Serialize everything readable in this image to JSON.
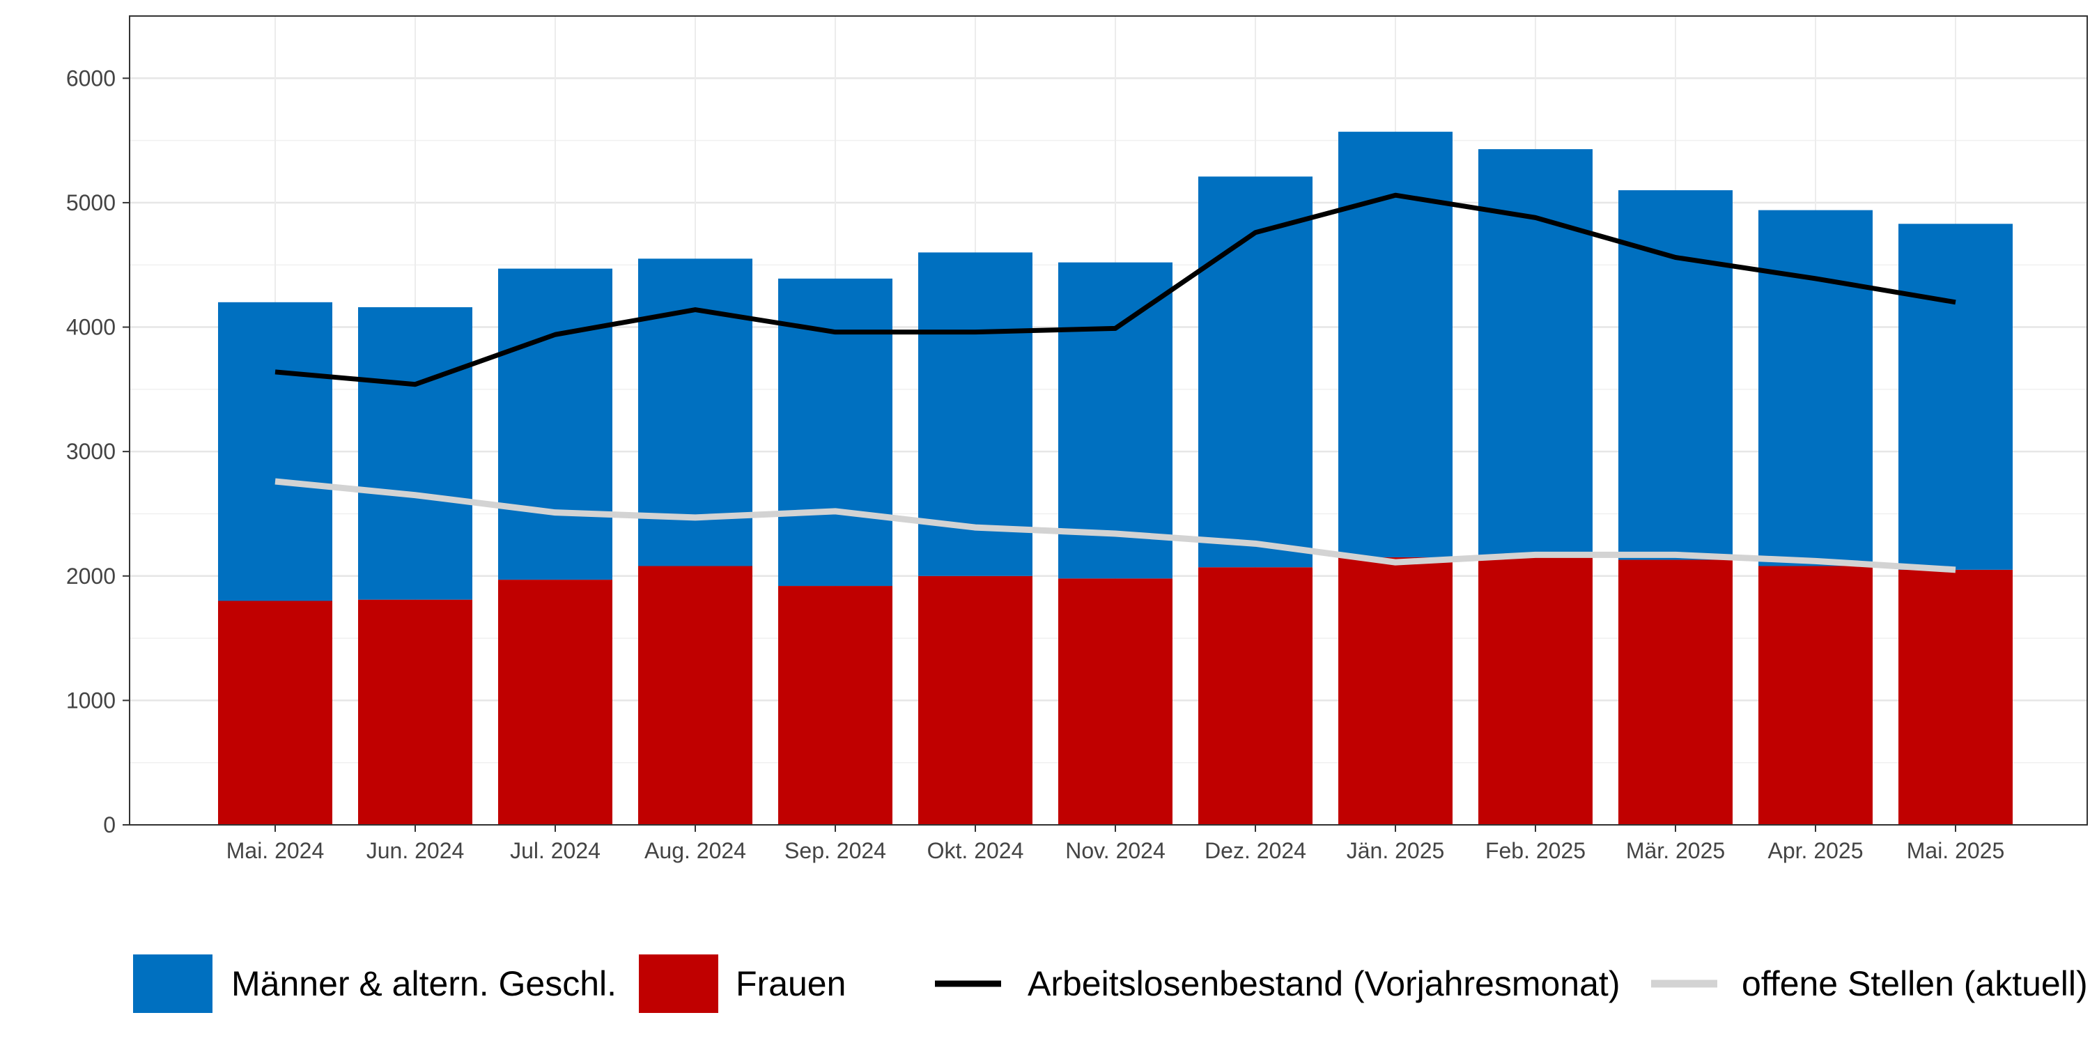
{
  "chart_data": {
    "type": "bar",
    "stacked": true,
    "categories": [
      "Mai. 2024",
      "Jun. 2024",
      "Jul. 2024",
      "Aug. 2024",
      "Sep. 2024",
      "Okt. 2024",
      "Nov. 2024",
      "Dez. 2024",
      "Jän. 2025",
      "Feb. 2025",
      "Mär. 2025",
      "Apr. 2025",
      "Mai. 2025"
    ],
    "series": [
      {
        "name": "Frauen",
        "kind": "bar",
        "color": "#c00000",
        "values": [
          1800,
          1810,
          1970,
          2080,
          1920,
          2000,
          1980,
          2070,
          2150,
          2160,
          2130,
          2080,
          2050
        ]
      },
      {
        "name": "Männer & altern. Geschl.",
        "kind": "bar",
        "color": "#0070c0",
        "values": [
          2400,
          2350,
          2500,
          2470,
          2470,
          2600,
          2540,
          3140,
          3420,
          3270,
          2970,
          2860,
          2780
        ]
      },
      {
        "name": "Arbeitslosenbestand (Vorjahresmonat)",
        "kind": "line",
        "color": "#000000",
        "values": [
          3640,
          3540,
          3940,
          4140,
          3960,
          3960,
          3990,
          4760,
          5060,
          4880,
          4560,
          4390,
          4200
        ]
      },
      {
        "name": "offene Stellen (aktuell)",
        "kind": "line",
        "color": "#d3d3d3",
        "values": [
          2760,
          2650,
          2510,
          2470,
          2520,
          2390,
          2340,
          2260,
          2110,
          2170,
          2170,
          2120,
          2050
        ]
      }
    ],
    "ylim": [
      0,
      6500
    ],
    "yticks": [
      0,
      1000,
      2000,
      3000,
      4000,
      5000,
      6000
    ],
    "grid": true,
    "legend_position": "bottom",
    "legend": [
      {
        "label": "Männer & altern. Geschl.",
        "kind": "box",
        "color": "#0070c0"
      },
      {
        "label": "Frauen",
        "kind": "box",
        "color": "#c00000"
      },
      {
        "label": "Arbeitslosenbestand (Vorjahresmonat)",
        "kind": "line",
        "color": "#000000"
      },
      {
        "label": "offene Stellen (aktuell)",
        "kind": "line",
        "color": "#d3d3d3"
      }
    ],
    "title": "",
    "xlabel": "",
    "ylabel": ""
  }
}
